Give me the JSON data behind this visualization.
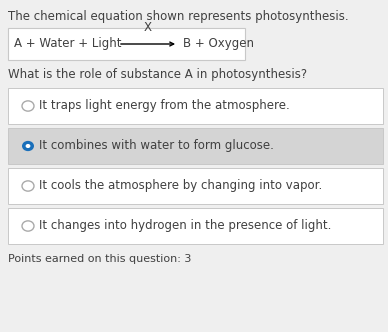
{
  "title_text": "The chemical equation shown represents photosynthesis.",
  "equation_left": "A + Water + Light",
  "equation_x": "X",
  "equation_right": "B + Oxygen",
  "question": "What is the role of substance A in photosynthesis?",
  "options": [
    "It traps light energy from the atmosphere.",
    "It combines with water to form glucose.",
    "It cools the atmosphere by changing into vapor.",
    "It changes into hydrogen in the presence of light."
  ],
  "selected_index": 1,
  "points_text": "Points earned on this question: 3",
  "bg_color": "#efefef",
  "option_bg_white": "#ffffff",
  "selected_bg_color": "#d4d4d4",
  "border_color": "#c8c8c8",
  "text_color": "#404040",
  "radio_selected_color": "#1a6fba",
  "radio_unselected_fill": "#ffffff",
  "radio_unselected_edge": "#aaaaaa",
  "font_size": 8.5,
  "font_size_small": 8.0
}
